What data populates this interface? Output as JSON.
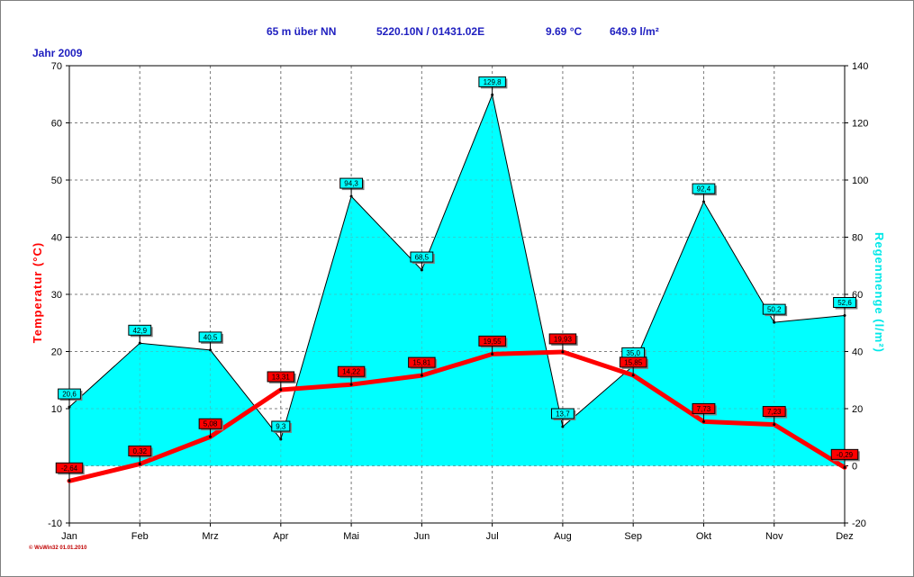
{
  "header": {
    "altitude": "65 m über NN",
    "coords": "5220.10N / 01431.02E",
    "temp": "9.69 °C",
    "rain": "649.9 l/m²"
  },
  "year_label": "Jahr 2009",
  "footer_credit": "© WsWin32 01.01.2010",
  "colors": {
    "temperature": "#ff0000",
    "rain_fill": "#00ffff",
    "header_text": "#2020c0",
    "rain_title": "#00e8e8"
  },
  "chart_data": {
    "type": "line",
    "categories": [
      "Jan",
      "Feb",
      "Mrz",
      "Apr",
      "Mai",
      "Jun",
      "Jul",
      "Aug",
      "Sep",
      "Okt",
      "Nov",
      "Dez"
    ],
    "series": [
      {
        "type": "line",
        "axis": "left",
        "values": [
          -2.64,
          0.32,
          5.08,
          13.31,
          14.22,
          15.81,
          19.55,
          19.93,
          15.85,
          7.73,
          7.23,
          -0.29
        ],
        "labels": [
          "-2,64",
          "0,32",
          "5,08",
          "13,31",
          "14,22",
          "15,81",
          "19,55",
          "19,93",
          "15,85",
          "7,73",
          "7,23",
          "-0,29"
        ]
      },
      {
        "type": "area",
        "axis": "right",
        "values": [
          20.6,
          42.9,
          40.5,
          9.3,
          94.3,
          68.5,
          129.8,
          13.7,
          35.0,
          92.4,
          50.2,
          52.6
        ],
        "labels": [
          "20,6",
          "42,9",
          "40,5",
          "9,3",
          "94,3",
          "68,5",
          "129,8",
          "13,7",
          "35,0",
          "92,4",
          "50,2",
          "52,6"
        ]
      }
    ],
    "ylabel_left": "Temperatur  (°C)",
    "ylabel_right": "Regenmenge  (l/m²)",
    "ylim_left": [
      -10,
      70
    ],
    "ylim_right": [
      -20,
      140
    ],
    "yticks_left": [
      -10,
      0,
      10,
      20,
      30,
      40,
      50,
      60,
      70
    ],
    "yticks_right": [
      -20,
      0,
      20,
      40,
      60,
      80,
      100,
      120,
      140
    ],
    "grid": true
  }
}
